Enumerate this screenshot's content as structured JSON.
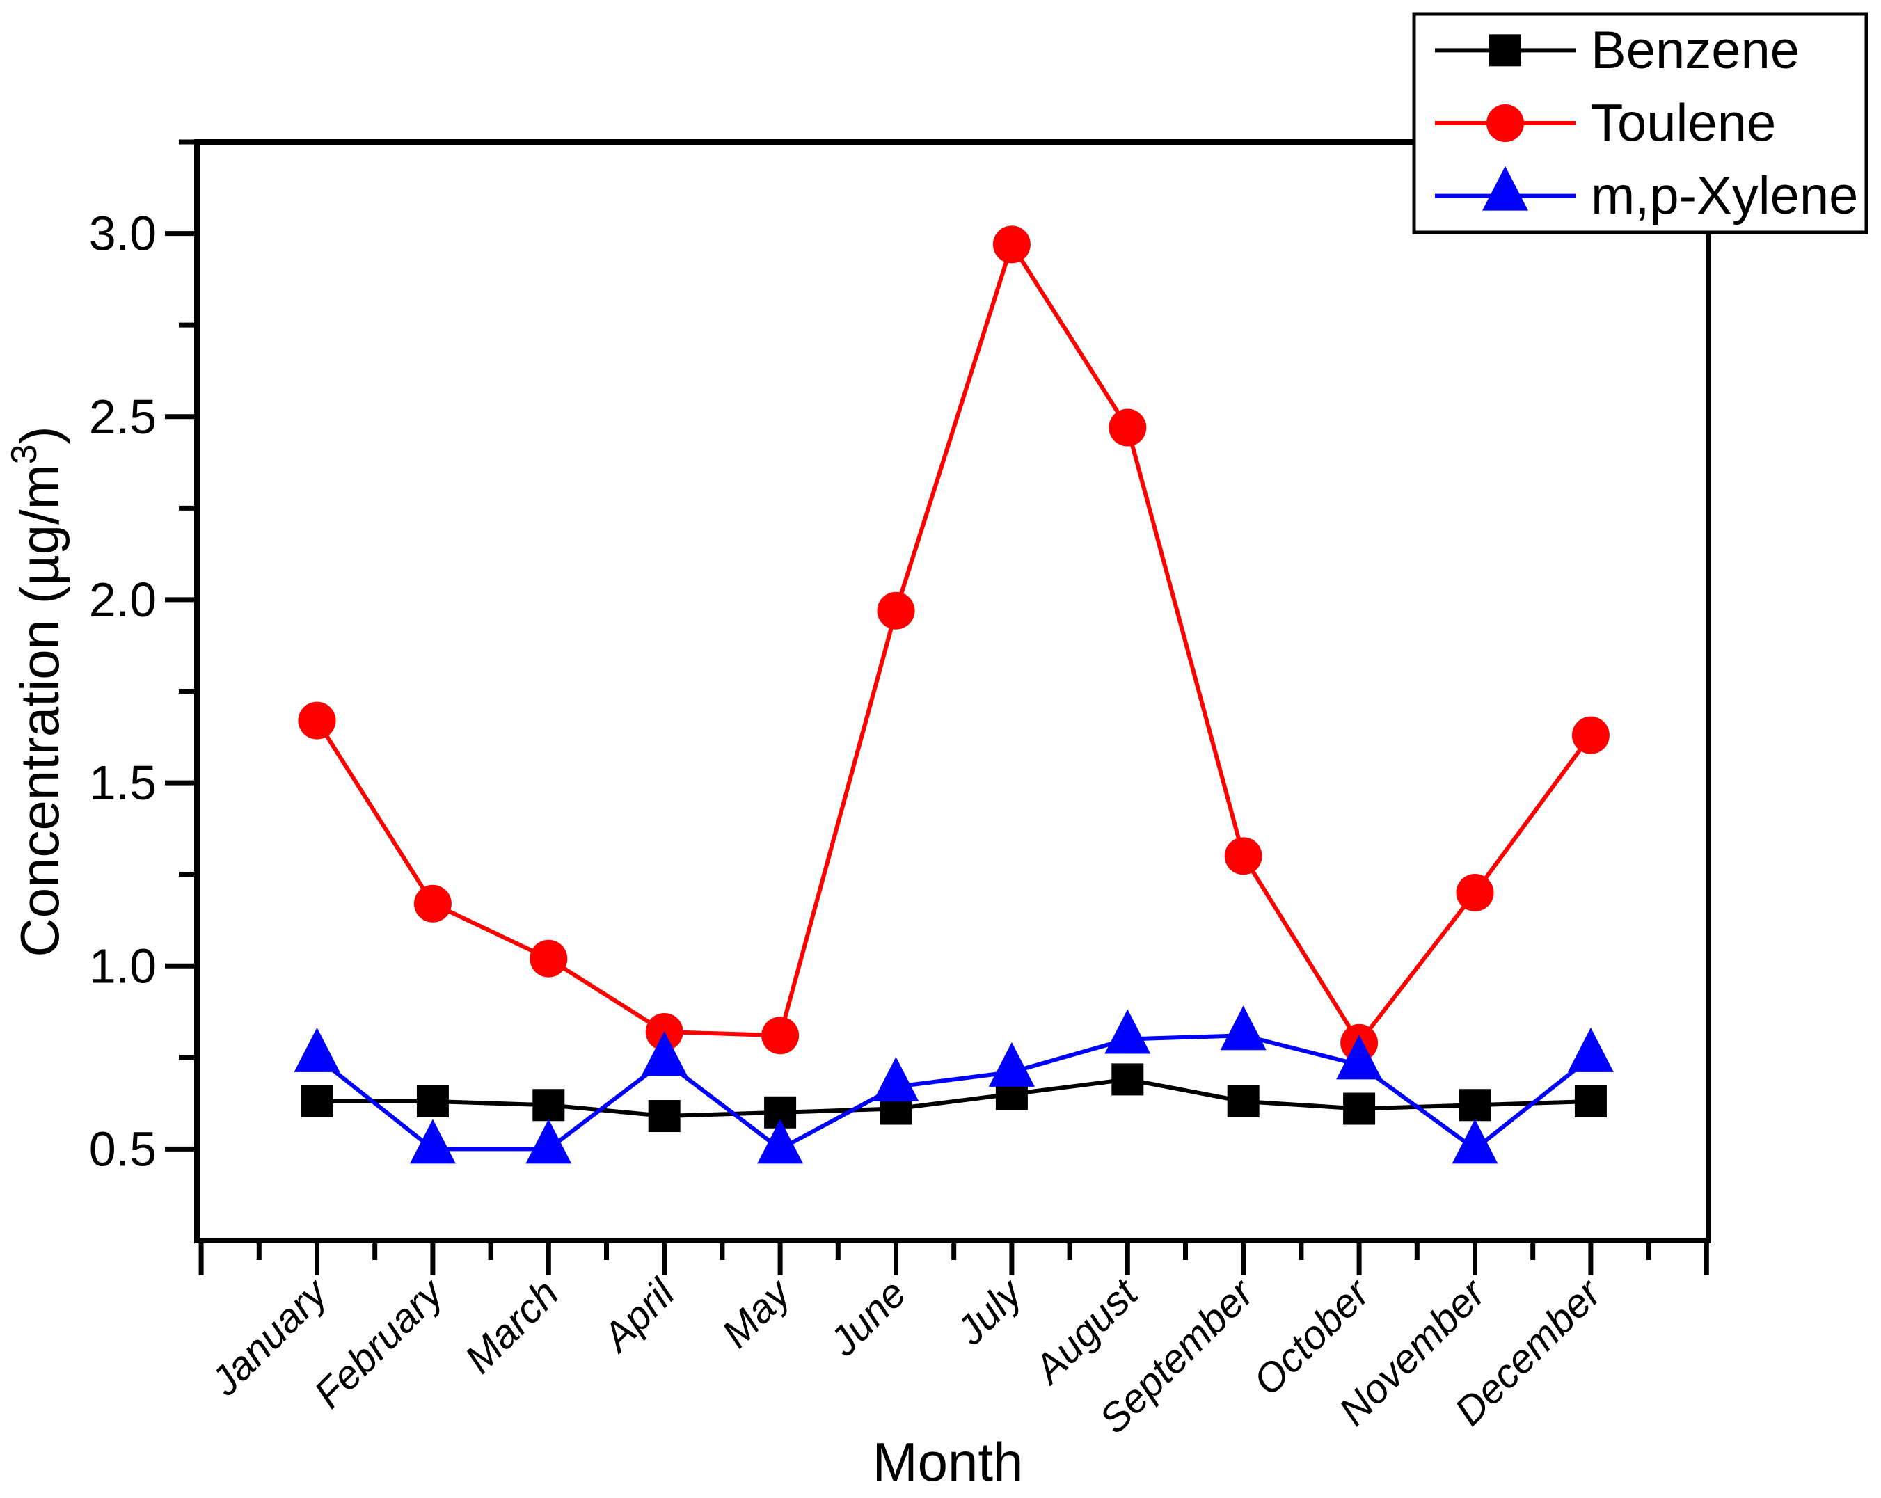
{
  "chart_data": {
    "type": "line",
    "title": "",
    "xlabel": "Month",
    "ylabel": "Concentration (µg/m³)",
    "ylabel_parts": {
      "base": "Concentration (µg/m",
      "sup": "3",
      "end": ")"
    },
    "categories": [
      "January",
      "February",
      "March",
      "April",
      "May",
      "June",
      "July",
      "August",
      "September",
      "October",
      "November",
      "December"
    ],
    "series": [
      {
        "name": "Benzene",
        "color": "#000000",
        "marker": "square",
        "values": [
          0.63,
          0.63,
          0.62,
          0.59,
          0.6,
          0.61,
          0.65,
          0.69,
          0.63,
          0.61,
          0.62,
          0.63
        ]
      },
      {
        "name": "Toulene",
        "color": "#ff0000",
        "marker": "circle",
        "values": [
          1.67,
          1.17,
          1.02,
          0.82,
          0.81,
          1.97,
          2.97,
          2.47,
          1.3,
          0.79,
          1.2,
          1.63
        ]
      },
      {
        "name": "m,p-Xylene",
        "color": "#0000ff",
        "marker": "triangle",
        "values": [
          0.75,
          0.5,
          0.5,
          0.74,
          0.5,
          0.67,
          0.71,
          0.8,
          0.81,
          0.73,
          0.5,
          0.75
        ]
      }
    ],
    "y_axis": {
      "min": 0.25,
      "max": 3.25,
      "major_ticks": [
        0.5,
        1.0,
        1.5,
        2.0,
        2.5,
        3.0
      ],
      "tick_labels": [
        "0.5",
        "1.0",
        "1.5",
        "2.0",
        "2.5",
        "3.0"
      ],
      "minor_ticks": [
        0.75,
        1.25,
        1.75,
        2.25,
        2.75,
        3.25
      ]
    },
    "x_axis": {
      "label_rotation_deg": -45
    },
    "legend": {
      "position": "top-right"
    },
    "grid": false,
    "background": "#ffffff",
    "axis_color": "#000000"
  }
}
